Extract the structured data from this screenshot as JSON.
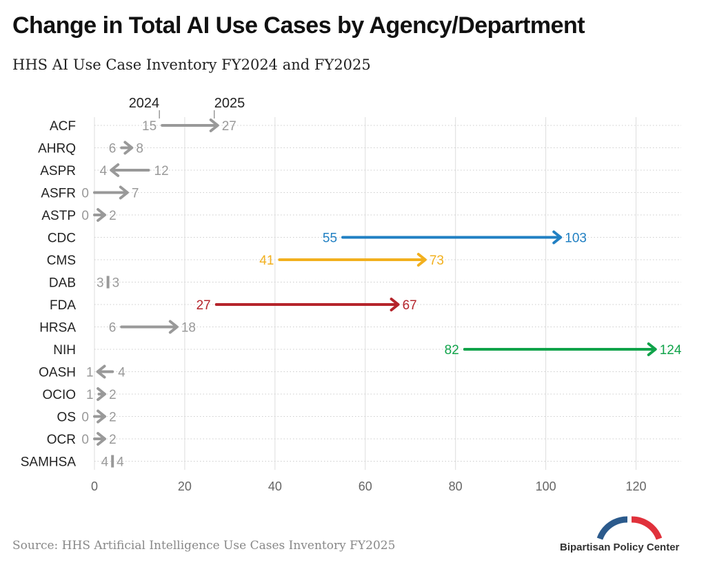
{
  "title": "Change in Total AI Use Cases by Agency/Department",
  "subtitle": "HHS AI Use Case Inventory FY2024 and FY2025",
  "source": "Source: HHS Artificial Intelligence Use Cases Inventory FY2025",
  "brand": {
    "name": "Bipartisan Policy Center",
    "colors": [
      "#2b5a8c",
      "#e0313b"
    ]
  },
  "chart_data": {
    "type": "arrow",
    "start_label": "2024",
    "end_label": "2025",
    "x_range": [
      0,
      130
    ],
    "x_ticks": [
      0,
      20,
      40,
      60,
      80,
      100,
      120
    ],
    "grid": true,
    "default_color": "#999999",
    "categories": [
      "ACF",
      "AHRQ",
      "ASPR",
      "ASFR",
      "ASTP",
      "CDC",
      "CMS",
      "DAB",
      "FDA",
      "HRSA",
      "NIH",
      "OASH",
      "OCIO",
      "OS",
      "OCR",
      "SAMHSA"
    ],
    "values_2024": [
      15,
      6,
      12,
      0,
      0,
      55,
      41,
      3,
      27,
      6,
      82,
      4,
      1,
      0,
      0,
      4
    ],
    "values_2025": [
      27,
      8,
      4,
      7,
      2,
      103,
      73,
      3,
      67,
      18,
      124,
      1,
      2,
      2,
      2,
      4
    ],
    "highlight_colors": {
      "CDC": "#2180c3",
      "CMS": "#f2b01e",
      "FDA": "#b5242b",
      "NIH": "#10a34a"
    }
  }
}
